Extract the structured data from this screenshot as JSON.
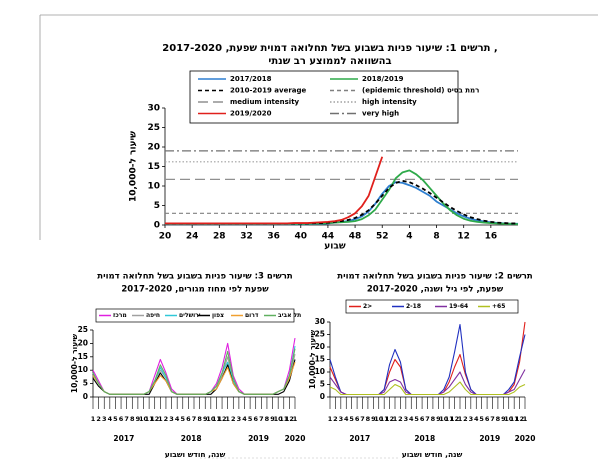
{
  "chart_data": [
    {
      "type": "line",
      "title": [
        "תרשים 1: שיעור פניות בשבוע בשל תחלואה דמוית שפעת, 2017-2020 ,",
        "בהשוואה לממוצע רב שנתי"
      ],
      "y_label": "שיעור ל-10,000",
      "x_label": "שבוע",
      "categories": [
        "20",
        null,
        null,
        null,
        "24",
        null,
        null,
        null,
        "28",
        null,
        null,
        null,
        "32",
        null,
        null,
        null,
        "36",
        null,
        null,
        null,
        "40",
        null,
        null,
        null,
        "44",
        null,
        null,
        null,
        "48",
        null,
        null,
        null,
        "52",
        null,
        null,
        null,
        "4",
        null,
        null,
        null,
        "8",
        null,
        null,
        null,
        "12",
        null,
        null,
        null,
        "16",
        null,
        null,
        null,
        null
      ],
      "ylim": [
        0,
        30
      ],
      "yticks": [
        0,
        5,
        10,
        15,
        20,
        25,
        30
      ],
      "series": [
        {
          "name": "2017/2018",
          "color": "#2e7fd0",
          "style": "solid",
          "values": [
            0.2,
            0.2,
            0.2,
            0.2,
            0.2,
            0.2,
            0.2,
            0.2,
            0.2,
            0.2,
            0.2,
            0.2,
            0.2,
            0.2,
            0.2,
            0.2,
            0.2,
            0.2,
            0.2,
            0.2,
            0.2,
            0.2,
            0.3,
            0.3,
            0.4,
            0.6,
            0.8,
            1.0,
            1.5,
            2.2,
            3.5,
            5.5,
            8,
            10,
            11,
            10.8,
            10.2,
            9.5,
            8.5,
            7.5,
            6,
            5,
            4,
            3,
            2.2,
            1.6,
            1.2,
            0.9,
            0.7,
            0.5,
            0.4,
            0.3,
            0.3
          ]
        },
        {
          "name": "2018/2019",
          "color": "#2eaa4a",
          "style": "solid",
          "values": [
            0.3,
            0.3,
            0.3,
            0.3,
            0.3,
            0.3,
            0.3,
            0.3,
            0.3,
            0.3,
            0.3,
            0.3,
            0.3,
            0.3,
            0.3,
            0.3,
            0.3,
            0.3,
            0.3,
            0.3,
            0.3,
            0.3,
            0.4,
            0.4,
            0.5,
            0.6,
            0.7,
            0.8,
            1.0,
            1.5,
            2.5,
            4,
            6.5,
            9,
            12,
            13.5,
            14,
            13,
            11.5,
            9.5,
            7.5,
            5.5,
            3.8,
            2.5,
            1.6,
            1.1,
            0.8,
            0.6,
            0.5,
            0.4,
            0.3,
            0.3,
            0.2
          ]
        },
        {
          "name": "2010-2019 average",
          "color": "#000000",
          "style": "dashed",
          "values": [
            0.4,
            0.4,
            0.4,
            0.4,
            0.4,
            0.4,
            0.4,
            0.4,
            0.4,
            0.4,
            0.4,
            0.4,
            0.4,
            0.4,
            0.4,
            0.4,
            0.4,
            0.4,
            0.4,
            0.4,
            0.4,
            0.4,
            0.5,
            0.5,
            0.6,
            0.8,
            1.0,
            1.3,
            1.8,
            2.6,
            3.8,
            5.5,
            7.5,
            9.5,
            10.8,
            11.3,
            11,
            10.2,
            9.3,
            8.2,
            7,
            5.8,
            4.6,
            3.6,
            2.7,
            2,
            1.5,
            1.1,
            0.8,
            0.6,
            0.5,
            0.4,
            0.4
          ]
        },
        {
          "name": "2019/2020",
          "color": "#e0201c",
          "style": "solid",
          "values": [
            0.4,
            0.4,
            0.4,
            0.4,
            0.4,
            0.4,
            0.4,
            0.4,
            0.4,
            0.4,
            0.4,
            0.4,
            0.4,
            0.4,
            0.4,
            0.4,
            0.4,
            0.4,
            0.4,
            0.5,
            0.5,
            0.5,
            0.6,
            0.7,
            0.8,
            1.0,
            1.3,
            2.0,
            3.0,
            4.8,
            7.5,
            12.5,
            17.5,
            null,
            null,
            null,
            null,
            null,
            null,
            null,
            null,
            null,
            null,
            null,
            null,
            null,
            null,
            null,
            null,
            null,
            null,
            null,
            null
          ]
        }
      ],
      "thresholds": [
        {
          "name": "(epidemic threshold) רמת בסיס",
          "value": 3,
          "color": "#808080",
          "style": "dashed"
        },
        {
          "name": "medium intensity",
          "value": 11.7,
          "color": "#909090",
          "style": "long-dashed"
        },
        {
          "name": "high intensity",
          "value": 16.2,
          "color": "#a0a0a0",
          "style": "dotted"
        },
        {
          "name": "very high",
          "value": 19,
          "color": "#707070",
          "style": "dash-dot"
        }
      ]
    },
    {
      "type": "line",
      "title": [
        "תרשים 3: שיעור פניות בשבוע בשל תחלואה דמוית",
        "שפעת לפי מחוז מגורים, 2017-2020"
      ],
      "y_label": "שיעור ל-10,000",
      "x_label": "שנה, חודש ושבוע",
      "categories": [
        "1",
        "2",
        "3",
        "4",
        "5",
        "6",
        "7",
        "8",
        "9",
        "10",
        "11",
        "12",
        "1",
        "2",
        "3",
        "4",
        "5",
        "6",
        "7",
        "8",
        "9",
        "10",
        "11",
        "12",
        "1",
        "2",
        "3",
        "4",
        "5",
        "6",
        "7",
        "8",
        "9",
        "10",
        "11",
        "12",
        "1"
      ],
      "years": [
        "2017",
        "2018",
        "2019",
        "2020"
      ],
      "ylim": [
        0,
        25
      ],
      "yticks": [
        0,
        5,
        10,
        15,
        20,
        25
      ],
      "series": [
        {
          "name": "מרכז",
          "color": "#e020e0",
          "values": [
            10,
            6,
            2,
            1,
            1,
            1,
            1,
            1,
            1,
            1,
            2,
            8,
            14,
            9,
            3,
            1,
            1,
            1,
            1,
            1,
            1,
            2,
            5,
            11,
            20,
            8,
            3,
            1,
            1,
            1,
            1,
            1,
            1,
            2,
            3,
            10,
            22
          ]
        },
        {
          "name": "חיפה",
          "color": "#a0a0a0",
          "values": [
            8,
            5,
            2,
            1,
            1,
            1,
            1,
            1,
            1,
            1,
            2,
            6,
            10,
            7,
            2,
            1,
            1,
            1,
            1,
            1,
            1,
            2,
            4,
            8,
            15,
            6,
            2,
            1,
            1,
            1,
            1,
            1,
            1,
            2,
            3,
            7,
            16
          ]
        },
        {
          "name": "ירושלים",
          "color": "#30c8d8",
          "values": [
            9,
            5,
            2,
            1,
            1,
            1,
            1,
            1,
            1,
            1,
            2,
            6,
            11,
            7,
            2,
            1,
            1,
            1,
            1,
            1,
            1,
            2,
            4,
            9,
            13,
            6,
            2,
            1,
            1,
            1,
            1,
            1,
            1,
            2,
            3,
            8,
            19
          ]
        },
        {
          "name": "צפון",
          "color": "#000000",
          "values": [
            7,
            4,
            2,
            1,
            1,
            1,
            1,
            1,
            1,
            1,
            1,
            5,
            9,
            6,
            2,
            1,
            1,
            1,
            1,
            1,
            1,
            1,
            3,
            7,
            12,
            5,
            2,
            1,
            1,
            1,
            1,
            1,
            1,
            1,
            2,
            6,
            14
          ]
        },
        {
          "name": "דרום",
          "color": "#f0a030",
          "values": [
            8,
            5,
            2,
            1,
            1,
            1,
            1,
            1,
            1,
            1,
            2,
            5,
            8,
            6,
            2,
            1,
            1,
            1,
            1,
            1,
            1,
            2,
            3,
            7,
            11,
            5,
            2,
            1,
            1,
            1,
            1,
            1,
            1,
            2,
            3,
            7,
            13
          ]
        },
        {
          "name": "תל אביב",
          "color": "#60b060",
          "values": [
            9,
            5,
            2,
            1,
            1,
            1,
            1,
            1,
            1,
            1,
            2,
            6,
            12,
            8,
            2,
            1,
            1,
            1,
            1,
            1,
            1,
            2,
            4,
            9,
            17,
            7,
            2,
            1,
            1,
            1,
            1,
            1,
            1,
            2,
            3,
            8,
            18
          ]
        }
      ]
    },
    {
      "type": "line",
      "title": [
        "תרשים 2: שיעור פניות בשבוע בשל תחלואה דמוית",
        "שפעת, לפי גיל ושנה, 2017-2020"
      ],
      "y_label": "שיעור ל-10,000",
      "x_label": "שנה, חודש ושבוע",
      "categories": [
        "1",
        "2",
        "3",
        "4",
        "5",
        "6",
        "7",
        "8",
        "9",
        "10",
        "11",
        "12",
        "1",
        "2",
        "3",
        "4",
        "5",
        "6",
        "7",
        "8",
        "9",
        "10",
        "11",
        "12",
        "1",
        "2",
        "3",
        "4",
        "5",
        "6",
        "7",
        "8",
        "9",
        "10",
        "11",
        "12",
        "1"
      ],
      "years": [
        "2017",
        "2018",
        "2019",
        "2020"
      ],
      "ylim": [
        0,
        30
      ],
      "yticks": [
        0,
        5,
        10,
        15,
        20,
        25,
        30
      ],
      "series": [
        {
          "name": "2>",
          "color": "#e0201c",
          "values": [
            12,
            7,
            2,
            1,
            1,
            1,
            1,
            1,
            1,
            1,
            3,
            10,
            15,
            12,
            3,
            1,
            1,
            1,
            1,
            1,
            1,
            2,
            6,
            12,
            17,
            9,
            3,
            1,
            1,
            1,
            1,
            1,
            1,
            2,
            5,
            14,
            30
          ]
        },
        {
          "name": "2-18",
          "color": "#2030c0",
          "values": [
            15,
            8,
            2,
            1,
            1,
            1,
            1,
            1,
            1,
            1,
            3,
            13,
            19,
            14,
            3,
            1,
            1,
            1,
            1,
            1,
            1,
            3,
            8,
            18,
            29,
            10,
            3,
            1,
            1,
            1,
            1,
            1,
            1,
            3,
            6,
            16,
            25
          ]
        },
        {
          "name": "19-64",
          "color": "#8030a0",
          "values": [
            8,
            5,
            2,
            1,
            1,
            1,
            1,
            1,
            1,
            1,
            2,
            6,
            7,
            6,
            2,
            1,
            1,
            1,
            1,
            1,
            1,
            2,
            4,
            7,
            10,
            5,
            2,
            1,
            1,
            1,
            1,
            1,
            1,
            2,
            3,
            7,
            11
          ]
        },
        {
          "name": "+65",
          "color": "#b0c020",
          "values": [
            4,
            3,
            1,
            1,
            1,
            1,
            1,
            1,
            1,
            1,
            1,
            3,
            5,
            4,
            1,
            1,
            1,
            1,
            1,
            1,
            1,
            1,
            2,
            4,
            6,
            3,
            1,
            1,
            1,
            1,
            1,
            1,
            1,
            1,
            2,
            4,
            5
          ]
        }
      ]
    }
  ]
}
